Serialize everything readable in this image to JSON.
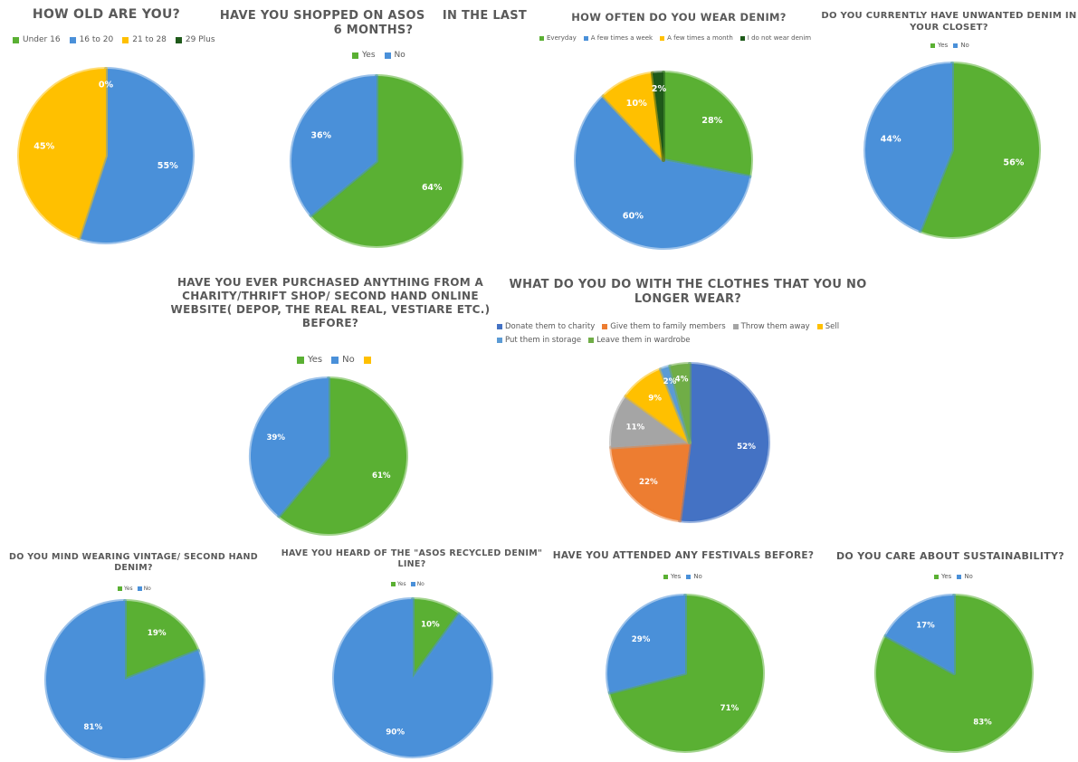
{
  "colors": {
    "green": "#5AB033",
    "blue": "#4A90D9",
    "gold": "#FFC000",
    "darkgreen": "#1F5A1A",
    "royal": "#4472C4",
    "orange": "#ED7D31",
    "gray": "#A5A5A5",
    "lightblue": "#5B9BD5",
    "brightgreen": "#70AD47"
  },
  "chart_data": [
    {
      "id": "age",
      "type": "pie",
      "title": "HOW OLD ARE YOU?",
      "categories": [
        "Under 16",
        "16 to 20",
        "21 to 28",
        "29 Plus"
      ],
      "values": [
        0,
        55,
        45,
        0
      ],
      "labels": [
        "",
        "55%",
        "45%",
        "0%"
      ],
      "colors": [
        "#5AB033",
        "#4A90D9",
        "#FFC000",
        "#1F5A1A"
      ],
      "legend": [
        "Under 16",
        "16 to 20",
        "21 to 28",
        "29 Plus"
      ],
      "legend_colors": [
        "#5AB033",
        "#4A90D9",
        "#FFC000",
        "#1F5A1A"
      ]
    },
    {
      "id": "asos6m",
      "type": "pie",
      "title": "HAVE YOU SHOPPED ON ASOS    IN THE LAST 6 MONTHS?",
      "categories": [
        "Yes",
        "No"
      ],
      "values": [
        64,
        36
      ],
      "labels": [
        "64%",
        "36%"
      ],
      "colors": [
        "#5AB033",
        "#4A90D9"
      ],
      "legend": [
        "Yes",
        "No"
      ],
      "legend_colors": [
        "#5AB033",
        "#4A90D9"
      ]
    },
    {
      "id": "denim",
      "type": "pie",
      "title": "HOW OFTEN DO YOU WEAR DENIM?",
      "categories": [
        "Everyday",
        "A few times a week",
        "A few times a month",
        "I do not wear denim"
      ],
      "values": [
        28,
        60,
        10,
        2
      ],
      "labels": [
        "28%",
        "60%",
        "10%",
        "2%"
      ],
      "colors": [
        "#5AB033",
        "#4A90D9",
        "#FFC000",
        "#1F5A1A"
      ],
      "legend": [
        "Everyday",
        "A few times a week",
        "A few times a month",
        "I do not wear denim"
      ],
      "legend_colors": [
        "#5AB033",
        "#4A90D9",
        "#FFC000",
        "#1F5A1A"
      ]
    },
    {
      "id": "unwanted",
      "type": "pie",
      "title": "DO YOU CURRENTLY HAVE UNWANTED DENIM IN YOUR CLOSET?",
      "categories": [
        "Yes",
        "No"
      ],
      "values": [
        56,
        44
      ],
      "labels": [
        "56%",
        "44%"
      ],
      "colors": [
        "#5AB033",
        "#4A90D9"
      ],
      "legend": [
        "Yes",
        "No"
      ],
      "legend_colors": [
        "#5AB033",
        "#4A90D9"
      ]
    },
    {
      "id": "charity",
      "type": "pie",
      "title": "HAVE YOU EVER PURCHASED ANYTHING FROM A CHARITY/THRIFT SHOP/ SECOND HAND ONLINE WEBSITE( DEPOP, THE REAL REAL, VESTIARE ETC.) BEFORE?",
      "categories": [
        "Yes",
        "No"
      ],
      "values": [
        61,
        39
      ],
      "labels": [
        "61%",
        "39%"
      ],
      "colors": [
        "#5AB033",
        "#4A90D9"
      ],
      "legend": [
        "Yes",
        "No",
        ""
      ],
      "legend_colors": [
        "#5AB033",
        "#4A90D9",
        "#FFC000"
      ]
    },
    {
      "id": "clothes",
      "type": "pie",
      "title": "WHAT DO YOU DO WITH THE CLOTHES THAT YOU NO LONGER WEAR?",
      "categories": [
        "Donate them to charity",
        "Give them to family members",
        "Throw them away",
        "Sell",
        "Put them in storage",
        "Leave them in wardrobe"
      ],
      "values": [
        52,
        22,
        11,
        9,
        2,
        4
      ],
      "labels": [
        "52%",
        "22%",
        "11%",
        "9%",
        "2%",
        "4%"
      ],
      "colors": [
        "#4472C4",
        "#ED7D31",
        "#A5A5A5",
        "#FFC000",
        "#5B9BD5",
        "#70AD47"
      ],
      "legend": [
        "Donate them to charity",
        "Give them to family members",
        "Throw them away",
        "Sell",
        "Put them in storage",
        "Leave them in wardrobe"
      ],
      "legend_colors": [
        "#4472C4",
        "#ED7D31",
        "#A5A5A5",
        "#FFC000",
        "#5B9BD5",
        "#70AD47"
      ]
    },
    {
      "id": "vintage",
      "type": "pie",
      "title": "DO YOU MIND WEARING VINTAGE/ SECOND HAND DENIM?",
      "categories": [
        "Yes",
        "No"
      ],
      "values": [
        19,
        81
      ],
      "labels": [
        "19%",
        "81%"
      ],
      "colors": [
        "#5AB033",
        "#4A90D9"
      ],
      "legend": [
        "Yes",
        "No"
      ],
      "legend_colors": [
        "#5AB033",
        "#4A90D9"
      ]
    },
    {
      "id": "recycled",
      "type": "pie",
      "title": "HAVE YOU HEARD OF THE \"ASOS RECYCLED DENIM\" LINE?",
      "categories": [
        "Yes",
        "No"
      ],
      "values": [
        10,
        90
      ],
      "labels": [
        "10%",
        "90%"
      ],
      "colors": [
        "#5AB033",
        "#4A90D9"
      ],
      "legend": [
        "Yes",
        "No"
      ],
      "legend_colors": [
        "#5AB033",
        "#4A90D9"
      ]
    },
    {
      "id": "festivals",
      "type": "pie",
      "title": "HAVE YOU ATTENDED ANY FESTIVALS BEFORE?",
      "categories": [
        "Yes",
        "No"
      ],
      "values": [
        71,
        29
      ],
      "labels": [
        "71%",
        "29%"
      ],
      "colors": [
        "#5AB033",
        "#4A90D9"
      ],
      "legend": [
        "Yes",
        "No"
      ],
      "legend_colors": [
        "#5AB033",
        "#4A90D9"
      ]
    },
    {
      "id": "sustain",
      "type": "pie",
      "title": "DO YOU CARE ABOUT SUSTAINABILITY?",
      "categories": [
        "Yes",
        "No"
      ],
      "values": [
        83,
        17
      ],
      "labels": [
        "83%",
        "17%"
      ],
      "colors": [
        "#5AB033",
        "#4A90D9"
      ],
      "legend": [
        "Yes",
        "No"
      ],
      "legend_colors": [
        "#5AB033",
        "#4A90D9"
      ]
    }
  ]
}
